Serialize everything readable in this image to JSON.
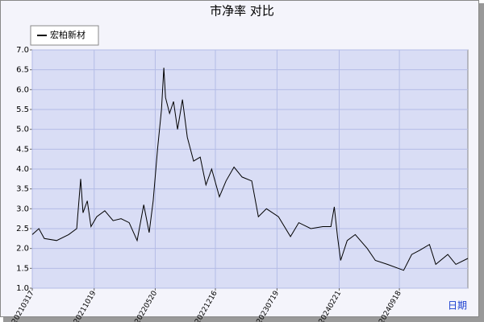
{
  "chart_data": {
    "type": "line",
    "title": "市净率  对比",
    "x_label": "日期",
    "x": [
      "20210317",
      "20210409",
      "20210428",
      "20210610",
      "20210722",
      "20210819",
      "20210902",
      "20210910",
      "20210925",
      "20211008",
      "20211028",
      "20211125",
      "20211224",
      "20220121",
      "20220218",
      "20220318",
      "20220410",
      "20220429",
      "20220513",
      "20220528",
      "20220611",
      "20220619",
      "20220625",
      "20220709",
      "20220723",
      "20220806",
      "20220823",
      "20220909",
      "20221001",
      "20221024",
      "20221113",
      "20221203",
      "20221230",
      "20230122",
      "20230219",
      "20230319",
      "20230422",
      "20230515",
      "20230612",
      "20230724",
      "20230904",
      "20231003",
      "20231114",
      "20231226",
      "20240123",
      "20240204",
      "20240215",
      "20240226",
      "20240320",
      "20240417",
      "20240529",
      "20240626",
      "20240807",
      "20241003",
      "20241031",
      "20241127",
      "20250101",
      "20250123",
      "20250306",
      "20250403",
      "20250515"
    ],
    "series": [
      {
        "name": "宏柏新材",
        "color": "#000000",
        "values": [
          2.35,
          2.5,
          2.25,
          2.2,
          2.35,
          2.5,
          3.75,
          2.9,
          3.2,
          2.55,
          2.8,
          2.95,
          2.7,
          2.75,
          2.65,
          2.2,
          3.1,
          2.4,
          3.2,
          4.5,
          5.5,
          6.55,
          5.8,
          5.4,
          5.7,
          5.0,
          5.75,
          4.8,
          4.2,
          4.3,
          3.6,
          4.0,
          3.3,
          3.7,
          4.05,
          3.8,
          3.7,
          2.8,
          3.0,
          2.8,
          2.3,
          2.65,
          2.5,
          2.55,
          2.55,
          3.05,
          2.3,
          1.7,
          2.2,
          2.35,
          2.0,
          1.7,
          1.6,
          1.45,
          1.85,
          1.95,
          2.1,
          1.6,
          1.85,
          1.6,
          1.75
        ]
      }
    ],
    "xticks": [
      "20210317",
      "20211019",
      "20220520",
      "20221216",
      "20230719",
      "20240221",
      "20240918"
    ],
    "ylim": [
      1,
      7
    ],
    "yticks": [
      {
        "value": 1,
        "label": "1.0"
      },
      {
        "value": 1.5,
        "label": "1.5"
      },
      {
        "value": 2,
        "label": "2.0"
      },
      {
        "value": 2.5,
        "label": "2.5"
      },
      {
        "value": 3,
        "label": "3.0"
      },
      {
        "value": 3.5,
        "label": "3.5"
      },
      {
        "value": 4,
        "label": "4.0"
      },
      {
        "value": 4.5,
        "label": "4.5"
      },
      {
        "value": 5,
        "label": "5.0"
      },
      {
        "value": 5.5,
        "label": "5.5"
      },
      {
        "value": 6,
        "label": "6.0"
      },
      {
        "value": 6.5,
        "label": "6.5"
      },
      {
        "value": 7,
        "label": "7.0"
      }
    ],
    "grid": true,
    "legend": "top-left"
  }
}
